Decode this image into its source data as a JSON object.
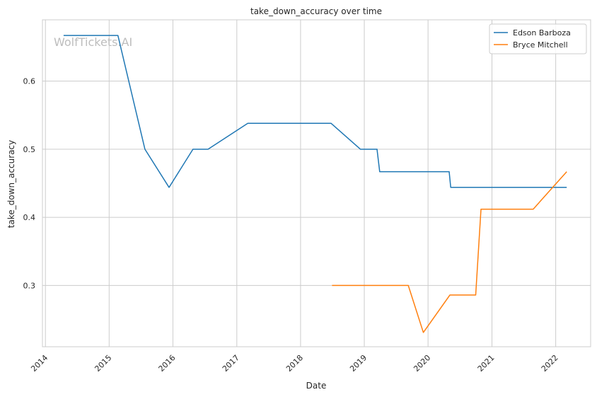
{
  "chart_data": {
    "type": "line",
    "title": "take_down_accuracy over time",
    "xlabel": "Date",
    "ylabel": "take_down_accuracy",
    "watermark": "WolfTickets.AI",
    "x_ticks": [
      "2014",
      "2015",
      "2016",
      "2017",
      "2018",
      "2019",
      "2020",
      "2021",
      "2022"
    ],
    "y_ticks": [
      0.3,
      0.4,
      0.5,
      0.6
    ],
    "y_tick_labels": [
      "0.3",
      "0.4",
      "0.5",
      "0.6"
    ],
    "xlim": [
      "2013-12-15",
      "2022-07-20"
    ],
    "ylim": [
      0.21,
      0.69
    ],
    "grid": true,
    "legend_position": "top-right",
    "series": [
      {
        "name": "Edson Barboza",
        "color": "#1f77b4",
        "points": [
          [
            "2014-04-15",
            0.667
          ],
          [
            "2015-02-20",
            0.667
          ],
          [
            "2015-07-25",
            0.5
          ],
          [
            "2015-12-10",
            0.444
          ],
          [
            "2016-04-25",
            0.5
          ],
          [
            "2016-07-20",
            0.5
          ],
          [
            "2017-03-05",
            0.538
          ],
          [
            "2018-06-25",
            0.538
          ],
          [
            "2018-12-10",
            0.5
          ],
          [
            "2019-03-15",
            0.5
          ],
          [
            "2019-03-30",
            0.467
          ],
          [
            "2020-05-01",
            0.467
          ],
          [
            "2020-05-10",
            0.444
          ],
          [
            "2022-03-05",
            0.444
          ]
        ]
      },
      {
        "name": "Bryce Mitchell",
        "color": "#ff7f0e",
        "points": [
          [
            "2018-06-30",
            0.3
          ],
          [
            "2019-09-10",
            0.3
          ],
          [
            "2019-12-05",
            0.231
          ],
          [
            "2020-05-05",
            0.286
          ],
          [
            "2020-09-30",
            0.286
          ],
          [
            "2020-10-30",
            0.412
          ],
          [
            "2021-08-25",
            0.412
          ],
          [
            "2022-03-05",
            0.467
          ]
        ]
      }
    ]
  }
}
